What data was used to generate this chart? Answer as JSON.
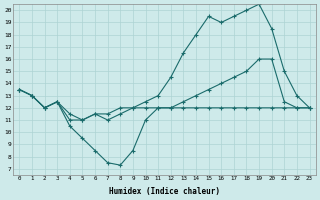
{
  "xlabel": "Humidex (Indice chaleur)",
  "bg_color": "#ceeaea",
  "line_color": "#1a6b6b",
  "grid_color": "#aed4d4",
  "xlim": [
    -0.5,
    23.5
  ],
  "ylim": [
    6.5,
    20.5
  ],
  "yticks": [
    7,
    8,
    9,
    10,
    11,
    12,
    13,
    14,
    15,
    16,
    17,
    18,
    19,
    20
  ],
  "xticks": [
    0,
    1,
    2,
    3,
    4,
    5,
    6,
    7,
    8,
    9,
    10,
    11,
    12,
    13,
    14,
    15,
    16,
    17,
    18,
    19,
    20,
    21,
    22,
    23
  ],
  "series": [
    {
      "x": [
        0,
        1,
        2,
        3,
        4,
        5,
        6,
        7,
        8,
        9,
        10,
        11,
        12,
        13,
        14,
        15,
        16,
        17,
        18,
        19,
        20,
        21,
        22,
        23
      ],
      "y": [
        13.5,
        13,
        12,
        12.5,
        11.5,
        11,
        11.5,
        11,
        11.5,
        12,
        12.5,
        13,
        14.5,
        16.5,
        18,
        19.5,
        19,
        19.5,
        20,
        20.5,
        18.5,
        15,
        13,
        12
      ]
    },
    {
      "x": [
        0,
        1,
        2,
        3,
        4,
        5,
        6,
        7,
        8,
        9,
        10,
        11,
        12,
        13,
        14,
        15,
        16,
        17,
        18,
        19,
        20,
        21,
        22,
        23
      ],
      "y": [
        13.5,
        13,
        12,
        12.5,
        11,
        11,
        11.5,
        11.5,
        12,
        12,
        12,
        12,
        12,
        12.5,
        13,
        13.5,
        14,
        14.5,
        15,
        16,
        16,
        12.5,
        12,
        12
      ]
    },
    {
      "x": [
        0,
        1,
        2,
        3,
        4,
        5,
        6,
        7,
        8,
        9,
        10,
        11,
        12,
        13,
        14,
        15,
        16,
        17,
        18,
        19,
        20,
        21,
        22,
        23
      ],
      "y": [
        13.5,
        13,
        12,
        12.5,
        10.5,
        9.5,
        8.5,
        7.5,
        7.3,
        8.5,
        11,
        12,
        12,
        12,
        12,
        12,
        12,
        12,
        12,
        12,
        12,
        12,
        12,
        12
      ]
    }
  ]
}
